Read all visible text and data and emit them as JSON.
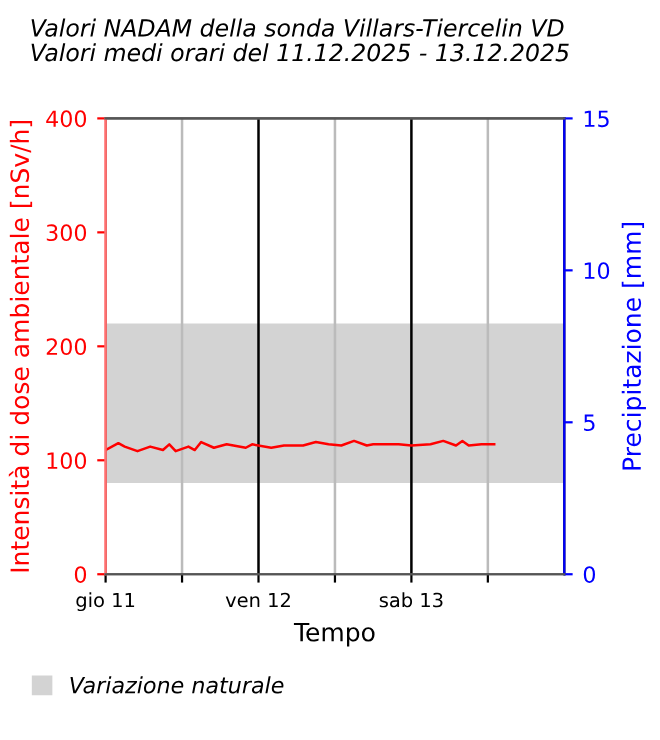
{
  "chart_data": {
    "type": "line",
    "title": "Valori NADAM della sonda Villars-Tiercelin VD\nValori medi orari del 11.12.2025 - 13.12.2025",
    "xlabel": "Tempo",
    "ylabel": "Intensità di dose ambientale [nSv/h]",
    "y2label": "Precipitazione [mm]",
    "x": [
      "2025-12-11T00:00",
      "2025-12-11T02:00",
      "2025-12-11T03:00",
      "2025-12-11T05:00",
      "2025-12-11T07:00",
      "2025-12-11T09:00",
      "2025-12-11T10:00",
      "2025-12-11T11:00",
      "2025-12-11T13:00",
      "2025-12-11T14:00",
      "2025-12-11T15:00",
      "2025-12-11T17:00",
      "2025-12-11T19:00",
      "2025-12-11T22:00",
      "2025-12-11T23:00",
      "2025-12-12T02:00",
      "2025-12-12T04:00",
      "2025-12-12T07:00",
      "2025-12-12T09:00",
      "2025-12-12T11:00",
      "2025-12-12T13:00",
      "2025-12-12T15:00",
      "2025-12-12T17:00",
      "2025-12-12T18:00",
      "2025-12-12T22:00",
      "2025-12-13T00:00",
      "2025-12-13T03:00",
      "2025-12-13T05:00",
      "2025-12-13T07:00",
      "2025-12-13T08:00",
      "2025-12-13T09:00",
      "2025-12-13T11:00",
      "2025-12-13T13:00"
    ],
    "series": [
      {
        "color": "#ff0000",
        "values": [
          109,
          115,
          112,
          108,
          112,
          109,
          114,
          108,
          112,
          109,
          116,
          111,
          114,
          111,
          114,
          111,
          113,
          113,
          116,
          114,
          113,
          117,
          113,
          114,
          114,
          113,
          114,
          117,
          113,
          117,
          113,
          114,
          114
        ]
      }
    ],
    "xlim": [
      "2025-12-11T00:00",
      "2025-12-14T00:00"
    ],
    "xticks": [
      {
        "value": "2025-12-11T00:00",
        "label": "gio 11"
      },
      {
        "value": "2025-12-11T12:00",
        "label": null
      },
      {
        "value": "2025-12-12T00:00",
        "label": "ven 12"
      },
      {
        "value": "2025-12-12T12:00",
        "label": null
      },
      {
        "value": "2025-12-13T00:00",
        "label": "sab 13"
      },
      {
        "value": "2025-12-13T12:00",
        "label": null
      }
    ],
    "ylim": [
      0,
      400
    ],
    "yticks": [
      0,
      100,
      200,
      300,
      400
    ],
    "y2lim": [
      0,
      15
    ],
    "y2ticks": [
      0,
      5,
      10,
      15
    ],
    "bands": [
      {
        "axis": "y",
        "from": 80,
        "to": 220,
        "label": "Variazione naturale",
        "color": "#d3d3d3"
      }
    ],
    "grid": "x",
    "legend": "bottom",
    "marker": "none",
    "line_style": "solid"
  }
}
